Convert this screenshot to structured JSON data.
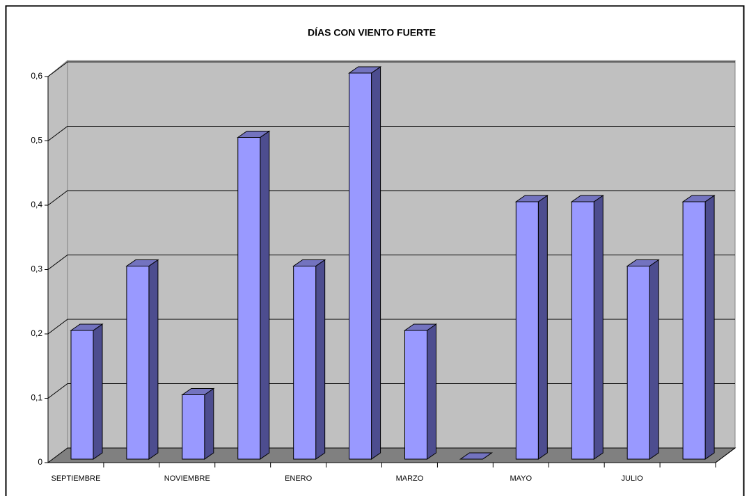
{
  "chart_data": {
    "type": "bar3d",
    "title": "DÍAS CON VIENTO FUERTE",
    "categories": [
      "SEPTIEMBRE",
      null,
      "NOVIEMBRE",
      null,
      "ENERO",
      null,
      "MARZO",
      null,
      "MAYO",
      null,
      "JULIO",
      null
    ],
    "values": [
      0.2,
      0.3,
      0.1,
      0.5,
      0.3,
      0.6,
      0.2,
      0,
      0.4,
      0.4,
      0.3,
      0.4
    ],
    "color": "#9999ff",
    "ylim": [
      0,
      0.6
    ],
    "yticks": [
      0,
      {
        "value": 0.1,
        "label": "0,1"
      },
      {
        "value": 0.2,
        "label": "0,2"
      },
      {
        "value": 0.3,
        "label": "0,3"
      },
      {
        "value": 0.4,
        "label": "0,4"
      },
      {
        "value": 0.5,
        "label": "0,5"
      },
      {
        "value": 0.6,
        "label": "0,6"
      }
    ],
    "grid": true
  }
}
